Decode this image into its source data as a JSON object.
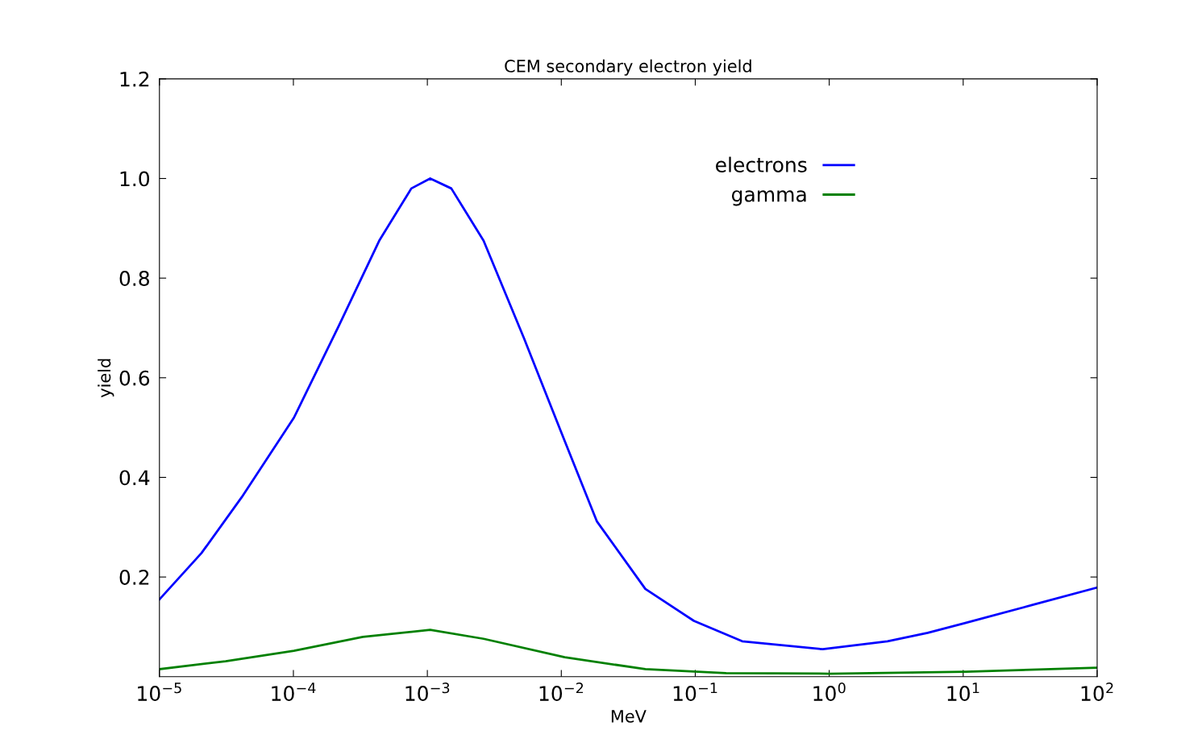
{
  "chart_data": {
    "type": "line",
    "title": "CEM secondary electron yield",
    "xlabel": "MeV",
    "ylabel": "yield",
    "log": "x",
    "xlim": [
      1e-05,
      100
    ],
    "ylim": [
      0,
      1.2
    ],
    "xticks": [
      {
        "value": 1e-05,
        "label": "10$^{−5}$"
      },
      {
        "value": 0.0001,
        "label": "10$^{−4}$"
      },
      {
        "value": 0.001,
        "label": "10$^{−3}$"
      },
      {
        "value": 0.01,
        "label": "10$^{−2}$"
      },
      {
        "value": 0.1,
        "label": "10$^{−1}$"
      },
      {
        "value": 1,
        "label": "10$^{0}$"
      },
      {
        "value": 10,
        "label": "10$^{1}$"
      },
      {
        "value": 100,
        "label": "10$^{2}$"
      }
    ],
    "yticks": [
      {
        "value": 0.2,
        "label": "0.2"
      },
      {
        "value": 0.4,
        "label": "0.4"
      },
      {
        "value": 0.6,
        "label": "0.6"
      },
      {
        "value": 0.8,
        "label": "0.8"
      },
      {
        "value": 1.0,
        "label": "1.0"
      },
      {
        "value": 1.2,
        "label": "1.2"
      }
    ],
    "grid": false,
    "legend": "top right",
    "line_style": "solid",
    "series": [
      {
        "name": "electrons",
        "color": "#0000ff",
        "x": [
          1e-05,
          2.06e-05,
          4.11e-05,
          0.000101,
          0.000219,
          0.000437,
          0.000759,
          0.00105,
          0.00151,
          0.00263,
          0.00525,
          0.0106,
          0.0184,
          0.0424,
          0.0977,
          0.224,
          0.895,
          2.72,
          5.43,
          10.1,
          33.0,
          100
        ],
        "values": [
          0.155,
          0.248,
          0.36,
          0.52,
          0.705,
          0.875,
          0.98,
          1.0,
          0.98,
          0.875,
          0.68,
          0.473,
          0.312,
          0.176,
          0.112,
          0.071,
          0.055,
          0.071,
          0.088,
          0.107,
          0.144,
          0.179
        ]
      },
      {
        "name": "gamma",
        "color": "#008000",
        "x": [
          1e-05,
          3.12e-05,
          0.000101,
          0.00033,
          0.00105,
          0.00263,
          0.0106,
          0.0424,
          0.17,
          1,
          10.5,
          100
        ],
        "values": [
          0.015,
          0.031,
          0.052,
          0.08,
          0.094,
          0.076,
          0.039,
          0.015,
          0.007,
          0.006,
          0.01,
          0.018
        ]
      }
    ]
  }
}
